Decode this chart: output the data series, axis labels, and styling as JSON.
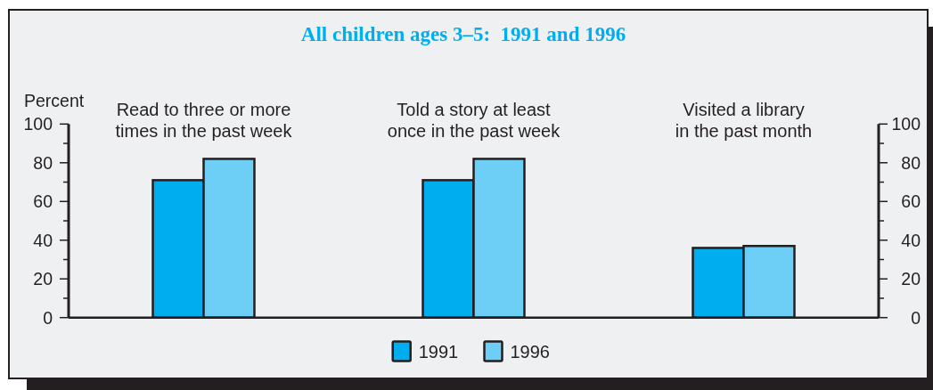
{
  "chart_data": {
    "type": "bar",
    "title": "All children ages 3–5:  1991 and 1996",
    "ylabel": "Percent",
    "categories": [
      "Read to three or more times in the past week",
      "Told a story at least once in the past week",
      "Visited a library in the past month"
    ],
    "series": [
      {
        "name": "1991",
        "color": "#00aeef",
        "values": [
          71,
          71,
          36
        ]
      },
      {
        "name": "1996",
        "color": "#6dcff6",
        "values": [
          82,
          82,
          37
        ]
      }
    ],
    "ylim": [
      0,
      100
    ],
    "yticks": [
      0,
      {
        "value": 10,
        "label": null
      },
      20,
      {
        "value": 30,
        "label": null
      },
      40,
      {
        "value": 50,
        "label": null
      },
      60,
      {
        "value": 70,
        "label": null
      },
      80,
      {
        "value": 90,
        "label": null
      },
      100
    ],
    "y2lim": [
      0,
      100
    ],
    "y2ticks": [
      0,
      {
        "value": 10,
        "label": null
      },
      20,
      {
        "value": 30,
        "label": null
      },
      40,
      {
        "value": 50,
        "label": null
      },
      60,
      {
        "value": 70,
        "label": null
      },
      80,
      {
        "value": 90,
        "label": null
      },
      100
    ],
    "legend": "bottom"
  }
}
